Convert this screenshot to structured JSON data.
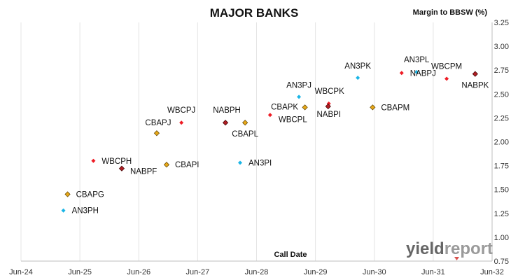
{
  "chart_data": {
    "type": "scatter",
    "title": "MAJOR BANKS",
    "xlabel": "Call Date",
    "ylabel": "Margin to BBSW (%)",
    "xlim": [
      "2024-06-30",
      "2032-06-30"
    ],
    "ylim": [
      0.75,
      3.25
    ],
    "x_ticks": [
      "Jun-24",
      "Jun-25",
      "Jun-26",
      "Jun-27",
      "Jun-28",
      "Jun-29",
      "Jun-30",
      "Jun-31",
      "Jun-32"
    ],
    "y_ticks": [
      "0.75",
      "1.00",
      "1.25",
      "1.50",
      "1.75",
      "2.00",
      "2.25",
      "2.50",
      "2.75",
      "3.00",
      "3.25"
    ],
    "grid": "vertical",
    "legend": "none",
    "colors": {
      "ANZ": "#1ab5e6",
      "CBA": "#e8a818",
      "WBC": "#ee1c25",
      "NAB": "#b01e24"
    },
    "points": [
      {
        "label": "AN3PH",
        "x": "2025-03-20",
        "y": 1.28,
        "group": "ANZ"
      },
      {
        "label": "CBAPG",
        "x": "2025-04-15",
        "y": 1.45,
        "group": "CBA"
      },
      {
        "label": "WBCPH",
        "x": "2025-09-22",
        "y": 1.8,
        "group": "WBC"
      },
      {
        "label": "NABPF",
        "x": "2026-03-17",
        "y": 1.72,
        "group": "NAB"
      },
      {
        "label": "CBAPJ",
        "x": "2026-10-20",
        "y": 2.09,
        "group": "CBA"
      },
      {
        "label": "CBAPI",
        "x": "2026-12-20",
        "y": 1.76,
        "group": "CBA"
      },
      {
        "label": "WBCPJ",
        "x": "2027-03-22",
        "y": 2.2,
        "group": "WBC"
      },
      {
        "label": "NABPH",
        "x": "2027-12-20",
        "y": 2.2,
        "group": "NAB"
      },
      {
        "label": "AN3PI",
        "x": "2028-03-20",
        "y": 1.78,
        "group": "ANZ"
      },
      {
        "label": "CBAPL",
        "x": "2028-04-20",
        "y": 2.2,
        "group": "CBA"
      },
      {
        "label": "WBCPL",
        "x": "2028-09-22",
        "y": 2.28,
        "group": "WBC"
      },
      {
        "label": "AN3PJ",
        "x": "2029-03-20",
        "y": 2.47,
        "group": "ANZ"
      },
      {
        "label": "CBAPK",
        "x": "2029-04-26",
        "y": 2.36,
        "group": "CBA"
      },
      {
        "label": "WBCPK",
        "x": "2029-09-21",
        "y": 2.4,
        "group": "WBC"
      },
      {
        "label": "NABPI",
        "x": "2029-09-17",
        "y": 2.37,
        "group": "NAB"
      },
      {
        "label": "AN3PK",
        "x": "2030-03-20",
        "y": 2.67,
        "group": "ANZ"
      },
      {
        "label": "CBAPM",
        "x": "2030-06-20",
        "y": 2.36,
        "group": "CBA"
      },
      {
        "label": "NABPJ",
        "x": "2030-12-17",
        "y": 2.72,
        "group": "WBC"
      },
      {
        "label": "AN3PL",
        "x": "2031-03-20",
        "y": 2.73,
        "group": "ANZ"
      },
      {
        "label": "WBCPM",
        "x": "2031-09-22",
        "y": 2.66,
        "group": "WBC"
      },
      {
        "label": "NABPK",
        "x": "2032-03-17",
        "y": 2.71,
        "group": "NAB"
      }
    ]
  },
  "brand": {
    "name_a": "yield",
    "name_b": "report"
  }
}
